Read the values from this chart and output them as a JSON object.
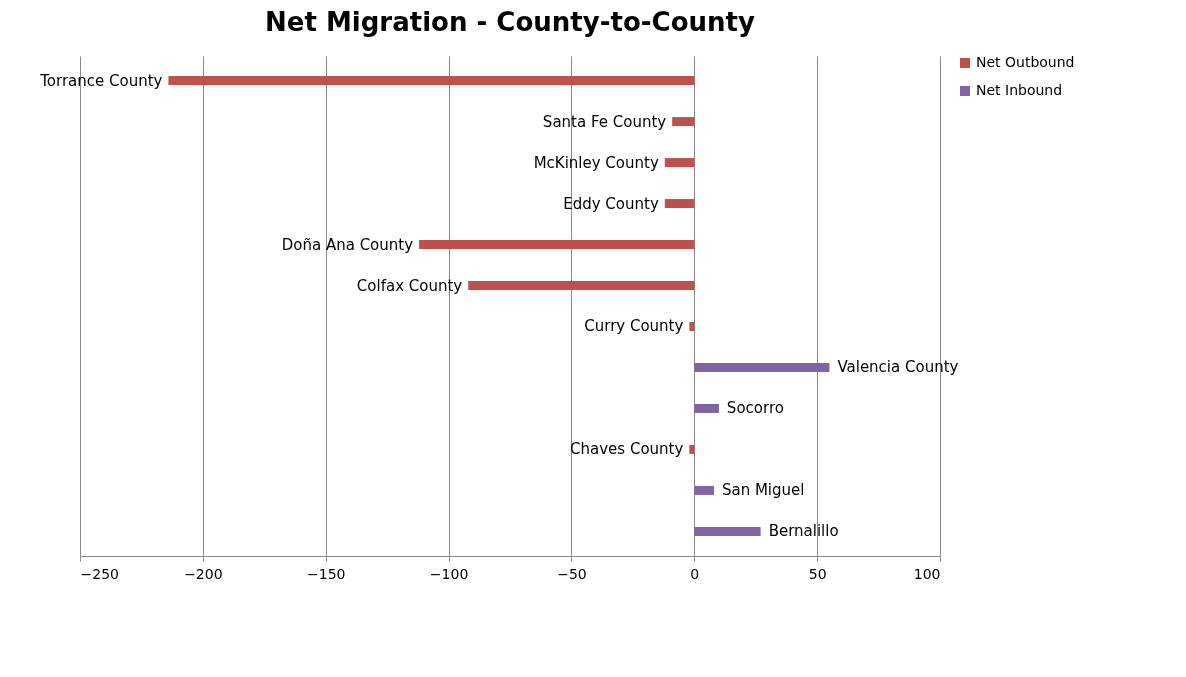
{
  "chart_data": {
    "type": "bar",
    "orientation": "horizontal",
    "title": "Net Migration - County-to-County",
    "categories": [
      "Torrance County",
      "Santa Fe County",
      "McKinley County",
      "Eddy County",
      "Doña Ana County",
      "Colfax County",
      "Curry County",
      "Valencia County",
      "Socorro",
      "Chaves County",
      "San Miguel",
      "Bernalillo"
    ],
    "series": [
      {
        "name": "Net Outbound",
        "color": "#c0504d",
        "values": [
          -214,
          -9,
          -12,
          -12,
          -112,
          -92,
          -2,
          null,
          null,
          -2,
          null,
          null
        ]
      },
      {
        "name": "Net Inbound",
        "color": "#8064a2",
        "values": [
          null,
          null,
          null,
          null,
          null,
          null,
          null,
          55,
          10,
          null,
          8,
          27
        ]
      }
    ],
    "xlim": [
      -250,
      100
    ],
    "xticks": [
      -250,
      -200,
      -150,
      -100,
      -50,
      0,
      50,
      100
    ],
    "grid": "x",
    "legend": "right"
  }
}
